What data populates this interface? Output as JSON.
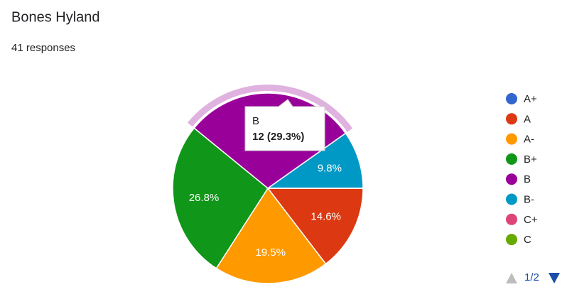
{
  "chart_data": {
    "type": "pie",
    "title": "Bones Hyland",
    "subtitle": "41 responses",
    "categories": [
      "A+",
      "A",
      "A-",
      "B+",
      "B",
      "B-",
      "C+",
      "C"
    ],
    "values": [
      0,
      14.6,
      19.5,
      26.8,
      29.3,
      9.8,
      0,
      0
    ],
    "value_labels": [
      null,
      "14.6%",
      "19.5%",
      "26.8%",
      null,
      "9.8%",
      null,
      null
    ],
    "colors": [
      "#3366cc",
      "#dc3912",
      "#ff9900",
      "#109618",
      "#990099",
      "#0099c6",
      "#dd4477",
      "#66aa00"
    ],
    "highlighted": 4,
    "tooltip": {
      "category": "B",
      "label": "12 (29.3%)"
    },
    "legend": "right",
    "legend_page": "1/2"
  }
}
